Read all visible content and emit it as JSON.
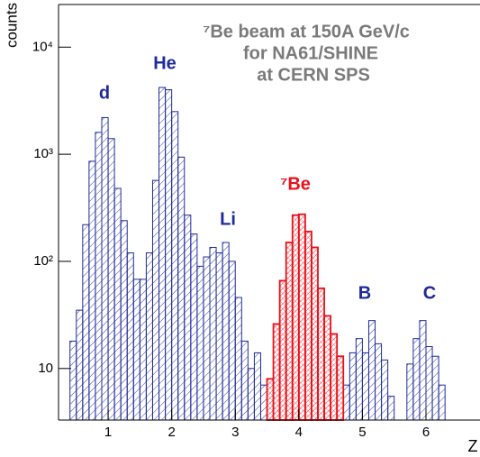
{
  "chart_data": {
    "type": "histogram",
    "ylabel": "counts",
    "xlabel": "Z",
    "annotations": [
      "⁷Be beam at 150A GeV/c",
      "for NA61/SHINE",
      "at CERN SPS",
      "d",
      "He",
      "Li",
      "⁷Be",
      "B",
      "C"
    ],
    "bins": [
      0.4,
      0.5,
      0.6,
      0.7,
      0.8,
      0.9,
      1.0,
      1.1,
      1.2,
      1.3,
      1.4,
      1.5,
      1.6,
      1.7,
      1.8,
      1.9,
      2.0,
      2.1,
      2.2,
      2.3,
      2.4,
      2.5,
      2.6,
      2.7,
      2.8,
      2.9,
      3.0,
      3.1,
      3.2,
      3.3,
      3.4,
      3.5,
      3.6,
      3.7,
      3.8,
      3.9,
      4.0,
      4.1,
      4.2,
      4.3,
      4.4,
      4.5,
      4.6,
      4.7,
      4.8,
      4.9,
      5.0,
      5.1,
      5.2,
      5.3,
      5.4,
      5.5,
      5.6,
      5.7,
      5.8,
      5.9,
      6.0,
      6.1,
      6.2,
      6.3
    ],
    "series": [
      {
        "color": "#1f2a9c",
        "values": [
          18,
          35,
          220,
          860,
          1600,
          2200,
          1400,
          480,
          240,
          120,
          68,
          68,
          120,
          570,
          4200,
          4000,
          2500,
          940,
          270,
          180,
          90,
          110,
          135,
          120,
          150,
          100,
          46,
          18,
          10,
          14,
          7,
          null,
          null,
          null,
          null,
          null,
          null,
          null,
          null,
          null,
          null,
          null,
          null,
          7,
          14,
          19,
          14,
          28,
          17,
          12,
          5.5,
          null,
          null,
          11,
          19,
          28,
          16,
          13,
          7
        ]
      },
      {
        "color": "#e8101a",
        "values": [
          null,
          null,
          null,
          null,
          null,
          null,
          null,
          null,
          null,
          null,
          null,
          null,
          null,
          null,
          null,
          null,
          null,
          null,
          null,
          null,
          null,
          null,
          null,
          null,
          null,
          null,
          null,
          null,
          null,
          null,
          null,
          8,
          26,
          66,
          150,
          270,
          275,
          190,
          135,
          56,
          31,
          21,
          13,
          null,
          null,
          null,
          null,
          null,
          null,
          null,
          null,
          null,
          null,
          null,
          null,
          null,
          null,
          null,
          null
        ]
      }
    ],
    "xlim": [
      0.22,
      6.85
    ],
    "xticks": [
      1,
      2,
      3,
      4,
      5,
      6
    ],
    "ylim": [
      3.3,
      25000
    ],
    "yscale": "log",
    "yticks": [
      10,
      {
        "value": 100,
        "label": "10²"
      },
      {
        "value": 1000,
        "label": "10³"
      },
      {
        "value": 10000,
        "label": "10⁴"
      }
    ]
  }
}
